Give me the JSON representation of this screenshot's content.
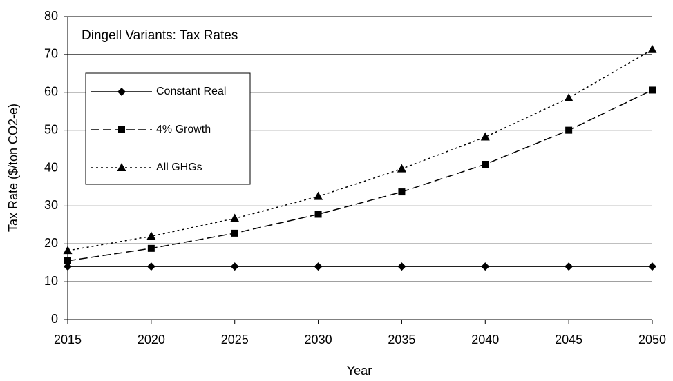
{
  "chart_data": {
    "type": "line",
    "title": "Dingell Variants: Tax Rates",
    "x_label": "Year",
    "y_label": "Tax Rate ($/ton CO2-e)",
    "x": [
      2015,
      2020,
      2025,
      2030,
      2035,
      2040,
      2045,
      2050
    ],
    "series": [
      {
        "name": "Constant Real",
        "color": "#000000",
        "dash": "solid",
        "marker": "diamond",
        "values": [
          14,
          14,
          14,
          14,
          14,
          14,
          14,
          14
        ]
      },
      {
        "name": "4% Growth",
        "color": "#000000",
        "dash": "dashed",
        "marker": "square",
        "values": [
          15.5,
          18.8,
          22.8,
          27.8,
          33.7,
          41,
          50,
          60.6
        ]
      },
      {
        "name": "All GHGs",
        "color": "#000000",
        "dash": "dotted",
        "marker": "triangle",
        "values": [
          18.2,
          22,
          26.7,
          32.5,
          39.8,
          48.2,
          58.5,
          71.3
        ]
      }
    ],
    "xlim": [
      2015,
      2050
    ],
    "xticks": [
      2015,
      2020,
      2025,
      2030,
      2035,
      2040,
      2045,
      2050
    ],
    "ylim": [
      0,
      80
    ],
    "yticks": [
      0,
      10,
      20,
      30,
      40,
      50,
      60,
      70,
      80
    ],
    "grid": true,
    "legend": "upper-left"
  }
}
